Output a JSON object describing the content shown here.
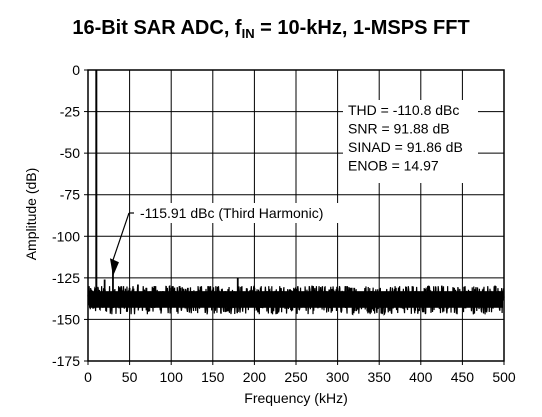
{
  "title": {
    "prefix": "16-Bit SAR ADC, f",
    "subscript": "IN",
    "suffix": " = 10-kHz, 1-MSPS FFT"
  },
  "chart_data": {
    "type": "line",
    "title": "16-Bit SAR ADC, fIN = 10-kHz, 1-MSPS FFT",
    "xlabel": "Frequency (kHz)",
    "ylabel": "Amplitude (dB)",
    "xlim": [
      0,
      500
    ],
    "ylim": [
      -175,
      0
    ],
    "xticks": [
      0,
      50,
      100,
      150,
      200,
      250,
      300,
      350,
      400,
      450,
      500
    ],
    "yticks": [
      0,
      -25,
      -50,
      -75,
      -100,
      -125,
      -150,
      -175
    ],
    "grid": true,
    "series": [
      {
        "noise_floor_db": -138,
        "noise_band_db": [
          -148,
          -130
        ],
        "peaks": [
          {
            "x": 10,
            "y": 0
          },
          {
            "x": 20,
            "y": -126
          },
          {
            "x": 30,
            "y": -116
          },
          {
            "x": 40,
            "y": -130
          },
          {
            "x": 50,
            "y": -131
          },
          {
            "x": 60,
            "y": -129
          },
          {
            "x": 70,
            "y": -131
          },
          {
            "x": 80,
            "y": -130
          },
          {
            "x": 90,
            "y": -133
          },
          {
            "x": 100,
            "y": -131
          },
          {
            "x": 110,
            "y": -130
          },
          {
            "x": 120,
            "y": -131
          },
          {
            "x": 150,
            "y": -132
          },
          {
            "x": 165,
            "y": -133
          },
          {
            "x": 180,
            "y": -125
          },
          {
            "x": 200,
            "y": -131
          },
          {
            "x": 215,
            "y": -133
          },
          {
            "x": 250,
            "y": -132
          },
          {
            "x": 270,
            "y": -131
          },
          {
            "x": 290,
            "y": -132
          },
          {
            "x": 310,
            "y": -130
          },
          {
            "x": 320,
            "y": -131
          },
          {
            "x": 340,
            "y": -133
          },
          {
            "x": 370,
            "y": -131
          },
          {
            "x": 390,
            "y": -130
          },
          {
            "x": 410,
            "y": -130
          },
          {
            "x": 440,
            "y": -131
          },
          {
            "x": 460,
            "y": -133
          },
          {
            "x": 490,
            "y": -130
          }
        ]
      }
    ],
    "stats": [
      "THD = -110.8 dBc",
      "SNR = 91.88 dB",
      "SINAD = 91.86 dB",
      "ENOB = 14.97"
    ],
    "annotation": {
      "text": "-115.91 dBc (Third Harmonic)",
      "x": 30,
      "y": -115.91
    }
  }
}
